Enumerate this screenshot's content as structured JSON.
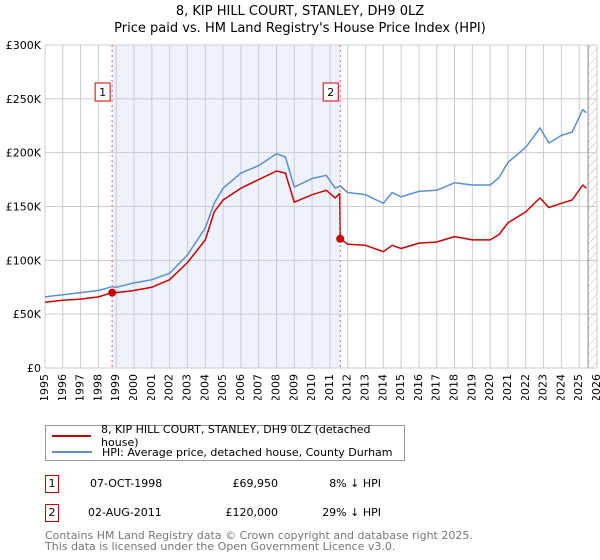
{
  "title_line1": "8, KIP HILL COURT, STANLEY, DH9 0LZ",
  "title_line2": "Price paid vs. HM Land Registry's House Price Index (HPI)",
  "chart_data": {
    "type": "line",
    "title": "8, KIP HILL COURT, STANLEY, DH9 0LZ — Price paid vs. HM Land Registry's House Price Index (HPI)",
    "xlim": [
      1995,
      2026
    ],
    "ylim": [
      0,
      300000
    ],
    "x_ticks": [
      1995,
      1996,
      1997,
      1998,
      1999,
      2000,
      2001,
      2002,
      2003,
      2004,
      2005,
      2006,
      2007,
      2008,
      2009,
      2010,
      2011,
      2012,
      2013,
      2014,
      2015,
      2016,
      2017,
      2018,
      2019,
      2020,
      2021,
      2022,
      2023,
      2024,
      2025,
      2026
    ],
    "y_ticks": [
      0,
      50000,
      100000,
      150000,
      200000,
      250000,
      300000
    ],
    "y_tick_labels": [
      "£0",
      "£50K",
      "£100K",
      "£150K",
      "£200K",
      "£250K",
      "£300K"
    ],
    "grid": true,
    "colors": {
      "property": "#cc0000",
      "hpi": "#5b8fd0",
      "shade": "#eef3fb"
    },
    "shaded_range": [
      1998.77,
      2011.58
    ],
    "hatched_from": 2025.5,
    "series": [
      {
        "name": "8, KIP HILL COURT, STANLEY, DH9 0LZ (detached house)",
        "color": "#cc0000",
        "x": [
          1995,
          1996,
          1997,
          1998,
          1998.77,
          1999,
          2000,
          2001,
          2002,
          2003,
          2004,
          2004.5,
          2005,
          2006,
          2007,
          2008,
          2008.5,
          2009,
          2010,
          2010.8,
          2011.3,
          2011.55,
          2011.58,
          2012,
          2013,
          2014,
          2014.5,
          2015,
          2016,
          2017,
          2018,
          2019,
          2020,
          2020.5,
          2021,
          2022,
          2022.8,
          2023.3,
          2024,
          2024.6,
          2025.2,
          2025.4
        ],
        "y": [
          61000,
          63000,
          64000,
          66000,
          69950,
          70000,
          72000,
          75000,
          82000,
          98000,
          119000,
          145000,
          156000,
          167000,
          175000,
          183000,
          181000,
          154000,
          161000,
          165000,
          158000,
          162000,
          120000,
          115000,
          114000,
          108000,
          114000,
          111000,
          116000,
          117000,
          122000,
          119000,
          119000,
          124000,
          135000,
          145000,
          158000,
          149000,
          153000,
          156000,
          170000,
          167000
        ]
      },
      {
        "name": "HPI: Average price, detached house, County Durham",
        "color": "#5b8fd0",
        "x": [
          1995,
          1996,
          1997,
          1998,
          1998.77,
          1999,
          2000,
          2001,
          2002,
          2003,
          2004,
          2004.5,
          2005,
          2006,
          2007,
          2008,
          2008.5,
          2009,
          2010,
          2010.8,
          2011.3,
          2011.58,
          2012,
          2013,
          2014,
          2014.5,
          2015,
          2016,
          2017,
          2018,
          2019,
          2020,
          2020.5,
          2021,
          2022,
          2022.8,
          2023.3,
          2024,
          2024.6,
          2025.2,
          2025.4
        ],
        "y": [
          66000,
          68000,
          70000,
          72000,
          75500,
          75000,
          79000,
          82000,
          88000,
          105000,
          130000,
          153000,
          167000,
          181000,
          188000,
          199000,
          196000,
          168000,
          176000,
          179000,
          167000,
          169000,
          163000,
          161000,
          153000,
          163000,
          159000,
          164000,
          165000,
          172000,
          170000,
          170000,
          177000,
          191000,
          205000,
          223000,
          209000,
          216000,
          219000,
          240000,
          237000
        ]
      }
    ],
    "annotations": [
      {
        "label": "1",
        "x": 1998.77,
        "y": 69950
      },
      {
        "label": "2",
        "x": 2011.58,
        "y": 120000
      }
    ]
  },
  "legend": [
    {
      "label": "8, KIP HILL COURT, STANLEY, DH9 0LZ (detached house)",
      "color": "#cc0000"
    },
    {
      "label": "HPI: Average price, detached house, County Durham",
      "color": "#5b8fd0"
    }
  ],
  "sales": [
    {
      "num": "1",
      "date": "07-OCT-1998",
      "price": "£69,950",
      "delta": "8% ↓ HPI"
    },
    {
      "num": "2",
      "date": "02-AUG-2011",
      "price": "£120,000",
      "delta": "29% ↓ HPI"
    }
  ],
  "footer_line1": "Contains HM Land Registry data © Crown copyright and database right 2025.",
  "footer_line2": "This data is licensed under the Open Government Licence v3.0."
}
